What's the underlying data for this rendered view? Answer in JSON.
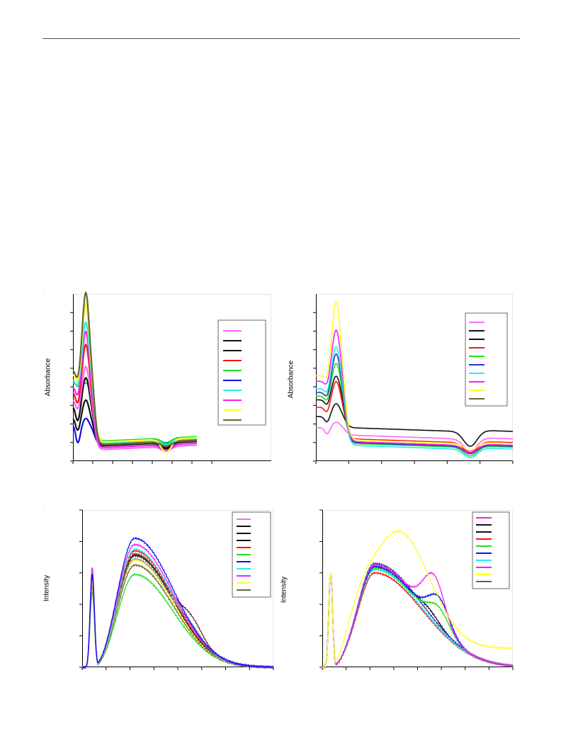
{
  "page": {
    "mark_a": "·",
    "mark_b": "·"
  },
  "colors": {
    "pink": "#ff66ff",
    "black": "#111111",
    "red": "#ff1111",
    "green": "#22dd22",
    "blue": "#1111ee",
    "cyan": "#22eeee",
    "magenta": "#ee22ee",
    "yellow": "#ffff22",
    "olive": "#666633",
    "brown": "#7a2a12",
    "darkblue": "#3333cc",
    "grey": "#999999"
  },
  "chart_data": [
    {
      "id": "abs-left",
      "type": "line",
      "ylabel": "Absorbance",
      "xlim": [
        0,
        10
      ],
      "ylim": [
        0,
        9
      ],
      "x_ticks": [
        0,
        1,
        2,
        3,
        4,
        5,
        6,
        7
      ],
      "y_ticks": [
        0,
        1,
        2,
        3,
        4,
        5,
        6,
        7,
        8
      ],
      "legend_position": "top-right",
      "legend_colors": [
        "pink",
        "black",
        "black",
        "red",
        "green",
        "blue",
        "cyan",
        "magenta",
        "yellow",
        "olive"
      ],
      "series": [
        {
          "color": "green",
          "base": 4.2,
          "dip": 4.05,
          "peak": 4.05,
          "flat": 1.2,
          "dip2": 1.05
        },
        {
          "color": "blue",
          "base": 1.8,
          "dip": 1.1,
          "peak": 1.6,
          "flat": 1.05,
          "dip2": 0.95
        },
        {
          "color": "black",
          "base": 2.2,
          "dip": 1.7,
          "peak": 2.8,
          "flat": 0.95,
          "dip2": 0.75
        },
        {
          "color": "black",
          "base": 2.8,
          "dip": 2.2,
          "peak": 3.9,
          "flat": 1.0,
          "dip2": 0.8
        },
        {
          "color": "pink",
          "base": 3.2,
          "dip": 2.8,
          "peak": 4.7,
          "flat": 0.75,
          "dip2": 0.6
        },
        {
          "color": "red",
          "base": 3.6,
          "dip": 3.1,
          "peak": 5.8,
          "flat": 1.05,
          "dip2": 0.9
        },
        {
          "color": "magenta",
          "base": 3.9,
          "dip": 3.5,
          "peak": 6.6,
          "flat": 0.85,
          "dip2": 0.65
        },
        {
          "color": "cyan",
          "base": 4.3,
          "dip": 4.0,
          "peak": 7.2,
          "flat": 1.1,
          "dip2": 0.95
        },
        {
          "color": "yellow",
          "base": 4.6,
          "dip": 4.2,
          "peak": 8.1,
          "flat": 1.15,
          "dip2": 0.7
        },
        {
          "color": "olive",
          "base": 4.8,
          "dip": 4.4,
          "peak": 8.7,
          "flat": 1.0,
          "dip2": 0.85
        }
      ]
    },
    {
      "id": "abs-right",
      "type": "line",
      "ylabel": "Absorbance",
      "xlim": [
        0,
        6
      ],
      "ylim": [
        0,
        9
      ],
      "x_ticks": [
        0,
        1,
        2,
        3,
        4,
        5,
        6
      ],
      "y_ticks": [
        0,
        1,
        2,
        3,
        4,
        5,
        6,
        7,
        8
      ],
      "legend_position": "top-right",
      "legend_colors": [
        "pink",
        "black",
        "black",
        "red",
        "green",
        "darkblue",
        "cyan",
        "magenta",
        "yellow",
        "olive"
      ],
      "series": [
        {
          "color": "pink",
          "base": 1.8,
          "peak": 2.1,
          "flat": 1.4,
          "dip2": 0.9
        },
        {
          "color": "black",
          "base": 2.4,
          "peak": 3.1,
          "flat": 1.8,
          "dip2": 1.2
        },
        {
          "color": "red",
          "base": 2.9,
          "peak": 4.3,
          "flat": 1.2,
          "dip2": 0.8
        },
        {
          "color": "black",
          "base": 3.3,
          "peak": 4.6,
          "flat": 1.05,
          "dip2": 0.75
        },
        {
          "color": "green",
          "base": 3.5,
          "peak": 5.3,
          "flat": 0.95,
          "dip2": 0.6
        },
        {
          "color": "darkblue",
          "base": 3.7,
          "peak": 5.8,
          "flat": 1.0,
          "dip2": 0.7
        },
        {
          "color": "cyan",
          "base": 3.9,
          "peak": 6.2,
          "flat": 0.85,
          "dip2": 0.5
        },
        {
          "color": "magenta",
          "base": 4.3,
          "peak": 7.1,
          "flat": 1.05,
          "dip2": 0.75
        },
        {
          "color": "yellow",
          "base": 4.6,
          "peak": 8.6,
          "flat": 1.15,
          "dip2": 0.9
        }
      ]
    },
    {
      "id": "int-left",
      "type": "line",
      "ylabel": "Intensity",
      "xlim": [
        0,
        8
      ],
      "ylim": [
        0,
        5
      ],
      "x_ticks": [
        0,
        1,
        2,
        3,
        4,
        5,
        6,
        7,
        8
      ],
      "y_ticks": [
        0,
        1,
        2,
        3,
        4,
        5
      ],
      "legend_position": "top-right",
      "legend_colors": [
        "pink",
        "black",
        "black",
        "black",
        "red",
        "green",
        "blue",
        "cyan",
        "magenta",
        "yellow",
        "olive"
      ],
      "series": [
        {
          "color": "green",
          "peak": 2.95,
          "shoulder": 0.0,
          "first": 2.4
        },
        {
          "color": "olive",
          "peak": 3.25,
          "shoulder": 0.0,
          "first": 2.6
        },
        {
          "color": "yellow",
          "peak": 3.4,
          "shoulder": 0.0,
          "first": 2.7
        },
        {
          "color": "black",
          "peak": 3.55,
          "shoulder": 0.0,
          "first": 2.8
        },
        {
          "color": "brown",
          "peak": 3.6,
          "shoulder": 0.45,
          "first": 2.9
        },
        {
          "color": "red",
          "peak": 3.7,
          "shoulder": 0.0,
          "first": 3.0
        },
        {
          "color": "grey",
          "peak": 3.45,
          "shoulder": 0.25,
          "first": 2.8
        },
        {
          "color": "cyan",
          "peak": 3.75,
          "shoulder": 0.1,
          "first": 3.1
        },
        {
          "color": "magenta",
          "peak": 3.9,
          "shoulder": 0.0,
          "first": 3.2
        },
        {
          "color": "blue",
          "peak": 4.1,
          "shoulder": 0.0,
          "first": 3.0
        }
      ]
    },
    {
      "id": "int-right",
      "type": "line",
      "ylabel": "Intensity",
      "xlim": [
        0,
        8
      ],
      "ylim": [
        0,
        5
      ],
      "x_ticks": [
        0,
        1,
        2,
        3,
        4,
        5,
        6,
        7,
        8
      ],
      "y_ticks": [
        0,
        1,
        2,
        3,
        4,
        5
      ],
      "legend_position": "top-right",
      "legend_colors": [
        "magenta",
        "black",
        "black",
        "red",
        "green",
        "blue",
        "cyan",
        "magenta",
        "yellow",
        "olive"
      ],
      "series": [
        {
          "color": "red",
          "peak": 3.0,
          "hump": 0.0,
          "hx": 4.6
        },
        {
          "color": "black",
          "peak": 3.2,
          "hump": 0.2,
          "hx": 4.5
        },
        {
          "color": "darkblue",
          "peak": 3.3,
          "hump": 0.0,
          "hx": 4.6
        },
        {
          "color": "cyan",
          "peak": 3.1,
          "hump": 0.0,
          "hx": 4.6
        },
        {
          "color": "green",
          "peak": 3.15,
          "hump": 0.65,
          "hx": 4.9
        },
        {
          "color": "blue",
          "peak": 3.2,
          "hump": 0.95,
          "hx": 4.9
        },
        {
          "color": "magenta",
          "peak": 3.25,
          "hump": 1.45,
          "hx": 4.7
        },
        {
          "color": "yellow",
          "peak": 3.7,
          "hump": 0.0,
          "hx": 4.6
        }
      ]
    }
  ]
}
